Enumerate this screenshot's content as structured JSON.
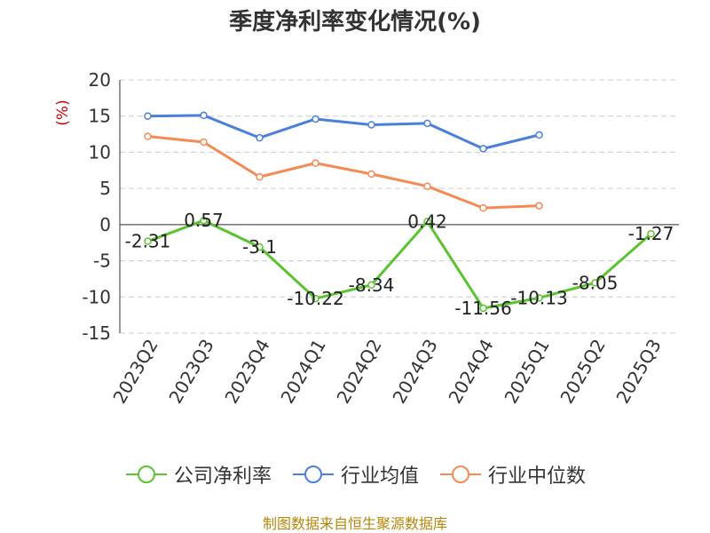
{
  "chart_data": {
    "type": "line",
    "title": "季度净利率变化情况(%)",
    "ylabel": "(%)",
    "xlabel": "",
    "ylim": [
      -15,
      20
    ],
    "yticks": [
      20,
      15,
      10,
      5,
      0,
      -5,
      -10,
      -15
    ],
    "categories": [
      "2023Q2",
      "2023Q3",
      "2023Q4",
      "2024Q1",
      "2024Q2",
      "2024Q3",
      "2024Q4",
      "2025Q1",
      "2025Q2",
      "2025Q3"
    ],
    "grid": true,
    "legend_position": "bottom",
    "series": [
      {
        "name": "公司净利率",
        "color": "#5cc330",
        "values": [
          -2.31,
          0.57,
          -3.1,
          -10.22,
          -8.34,
          0.42,
          -11.56,
          -10.13,
          -8.05,
          -1.27
        ],
        "labels": [
          "-2.31",
          "0.57",
          "-3.1",
          "-10.22",
          "-8.34",
          "0.42",
          "-11.56",
          "-10.13",
          "-8.05",
          "-1.27"
        ]
      },
      {
        "name": "行业均值",
        "color": "#4a7fde",
        "values": [
          15.0,
          15.1,
          12.0,
          14.6,
          13.8,
          14.0,
          10.5,
          12.4,
          null,
          null
        ]
      },
      {
        "name": "行业中位数",
        "color": "#f58a55",
        "values": [
          12.2,
          11.4,
          6.6,
          8.5,
          7.0,
          5.3,
          2.3,
          2.6,
          null,
          null
        ]
      }
    ]
  },
  "source": "制图数据来自恒生聚源数据库"
}
